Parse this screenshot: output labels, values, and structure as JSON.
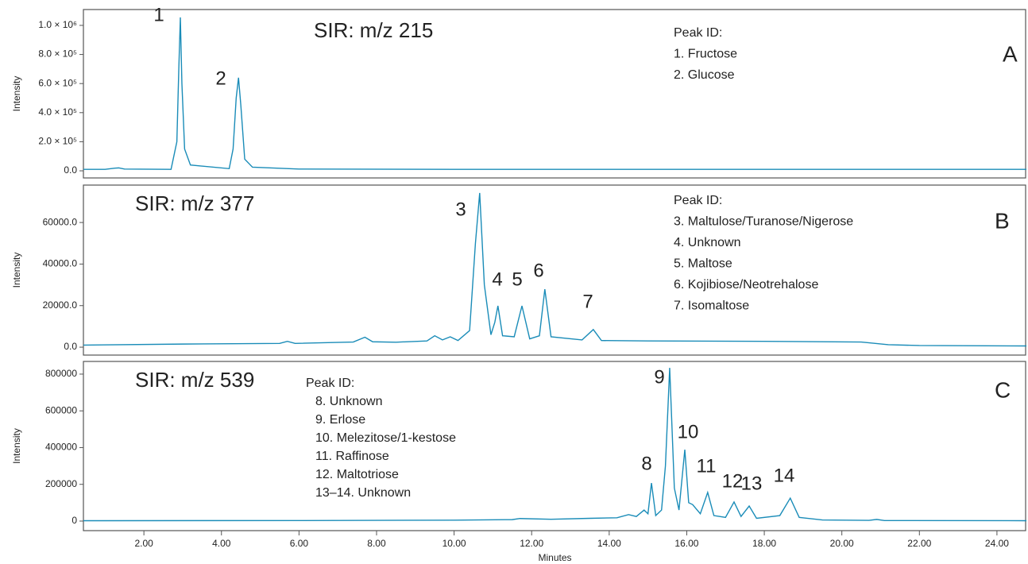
{
  "chart_data": [
    {
      "type": "line",
      "title": "SIR: m/z 215",
      "panel_label": "A",
      "y_label": "Intensity",
      "peak_id_title": "Peak ID:",
      "peak_ids": [
        "1. Fructose",
        "2. Glucose"
      ],
      "peak_labels": [
        "1",
        "2"
      ],
      "xlim": [
        0.44,
        24.76
      ],
      "ylim": [
        -49000,
        1109000
      ],
      "yticks": [
        {
          "value": 0,
          "label": "0.0"
        },
        {
          "value": 200000,
          "label": "2.0 × 10⁵"
        },
        {
          "value": 400000,
          "label": "4.0 × 10⁵"
        },
        {
          "value": 600000,
          "label": "6.0 × 10⁵"
        },
        {
          "value": 800000,
          "label": "8.0 × 10⁵"
        },
        {
          "value": 1000000,
          "label": "1.0 × 10⁶"
        }
      ],
      "series": [
        {
          "color": "#1a8cb8",
          "x": [
            0.44,
            1.0,
            1.25,
            1.35,
            1.5,
            2.7,
            2.85,
            2.9,
            2.94,
            2.98,
            3.05,
            3.2,
            4.2,
            4.3,
            4.38,
            4.44,
            4.5,
            4.6,
            4.8,
            6,
            10,
            15,
            20,
            24.76
          ],
          "values": [
            10000,
            10000,
            18000,
            20000,
            12000,
            10000,
            200000,
            700000,
            1055000,
            600000,
            150000,
            40000,
            15000,
            150000,
            500000,
            640000,
            450000,
            80000,
            25000,
            12000,
            10000,
            10000,
            10000,
            10000
          ]
        }
      ]
    },
    {
      "type": "line",
      "title": "SIR: m/z 377",
      "panel_label": "B",
      "y_label": "Intensity",
      "peak_id_title": "Peak ID:",
      "peak_ids": [
        "3. Maltulose/Turanose/Nigerose",
        "4. Unknown",
        "5. Maltose",
        "6. Kojibiose/Neotrehalose",
        "7. Isomaltose"
      ],
      "peak_labels": [
        "3",
        "4",
        "5",
        "6",
        "7"
      ],
      "xlim": [
        0.44,
        24.76
      ],
      "ylim": [
        -3800,
        78000
      ],
      "yticks": [
        {
          "value": 0,
          "label": "0.0"
        },
        {
          "value": 20000,
          "label": "20000.0"
        },
        {
          "value": 40000,
          "label": "40000.0"
        },
        {
          "value": 60000,
          "label": "60000.0"
        }
      ],
      "series": [
        {
          "color": "#1a8cb8",
          "x": [
            0.44,
            3,
            5.5,
            5.7,
            5.9,
            7.4,
            7.7,
            7.9,
            8.5,
            9.3,
            9.5,
            9.7,
            9.9,
            10.1,
            10.4,
            10.55,
            10.66,
            10.78,
            10.95,
            11.05,
            11.13,
            11.25,
            11.55,
            11.75,
            11.95,
            12.2,
            12.34,
            12.5,
            13.3,
            13.59,
            13.8,
            15,
            18,
            20.5,
            21.2,
            22,
            24.76
          ],
          "values": [
            1000,
            1500,
            1800,
            2800,
            1800,
            2500,
            4800,
            2600,
            2400,
            3000,
            5500,
            3500,
            5000,
            3200,
            8000,
            50000,
            74200,
            30000,
            6000,
            12000,
            19900,
            5500,
            5000,
            19900,
            4000,
            5500,
            27900,
            5000,
            3500,
            8500,
            3200,
            3000,
            2800,
            2500,
            1200,
            800,
            600
          ]
        }
      ]
    },
    {
      "type": "line",
      "title": "SIR: m/z 539",
      "panel_label": "C",
      "y_label": "Intensity",
      "x_label": "Minutes",
      "peak_id_title": "Peak ID:",
      "peak_ids": [
        "8. Unknown",
        "9. Erlose",
        "10. Melezitose/1-kestose",
        "11. Raffinose",
        "12. Maltotriose",
        "13–14. Unknown"
      ],
      "peak_labels": [
        "8",
        "9",
        "10",
        "11",
        "12",
        "13",
        "14"
      ],
      "xlim": [
        0.44,
        24.76
      ],
      "ylim": [
        -52000,
        869000
      ],
      "xticks": [
        {
          "value": 2,
          "label": "2.00"
        },
        {
          "value": 4,
          "label": "4.00"
        },
        {
          "value": 6,
          "label": "6.00"
        },
        {
          "value": 8,
          "label": "8.00"
        },
        {
          "value": 10,
          "label": "10.00"
        },
        {
          "value": 12,
          "label": "12.00"
        },
        {
          "value": 14,
          "label": "14.00"
        },
        {
          "value": 16,
          "label": "16.00"
        },
        {
          "value": 18,
          "label": "18.00"
        },
        {
          "value": 20,
          "label": "20.00"
        },
        {
          "value": 22,
          "label": "22.00"
        },
        {
          "value": 24,
          "label": "24.00"
        }
      ],
      "yticks": [
        0,
        200000,
        400000,
        600000,
        800000
      ],
      "series": [
        {
          "color": "#1a8cb8",
          "x": [
            0.44,
            6,
            10,
            11.5,
            11.7,
            12.5,
            13.5,
            14.2,
            14.5,
            14.7,
            14.9,
            15.0,
            15.09,
            15.2,
            15.35,
            15.45,
            15.56,
            15.68,
            15.8,
            15.95,
            16.05,
            16.15,
            16.35,
            16.54,
            16.7,
            17.0,
            17.22,
            17.4,
            17.61,
            17.8,
            18.4,
            18.67,
            18.9,
            19.5,
            20.7,
            20.9,
            21.1,
            24.76
          ],
          "values": [
            2000,
            3000,
            5000,
            8000,
            14000,
            10000,
            15000,
            18000,
            35000,
            25000,
            60000,
            40000,
            207000,
            30000,
            60000,
            300000,
            834000,
            180000,
            60000,
            389000,
            100000,
            90000,
            40000,
            156000,
            30000,
            20000,
            104000,
            25000,
            82000,
            15000,
            30000,
            125000,
            20000,
            6000,
            4000,
            9000,
            3000,
            2000
          ]
        }
      ]
    }
  ]
}
